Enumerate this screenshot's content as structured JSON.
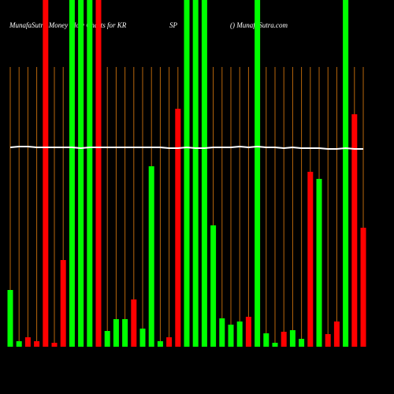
{
  "chart_data": {
    "type": "bar",
    "title_parts": [
      "MunafaSutra Money Flow Charts for KR",
      "SP",
      "() MunafaSutra.com"
    ],
    "ylim": [
      0,
      440
    ],
    "values": [
      72,
      7,
      12,
      7,
      460,
      5,
      110,
      460,
      460,
      460,
      460,
      20,
      35,
      35,
      60,
      23,
      229,
      7,
      12,
      302,
      460,
      460,
      460,
      154,
      36,
      28,
      32,
      38,
      460,
      17,
      5,
      19,
      21,
      10,
      222,
      213,
      16,
      32,
      460,
      295,
      151
    ],
    "colors": [
      "#00ff00",
      "#00ff00",
      "#ff0000",
      "#ff0000",
      "#ff0000",
      "#ff0000",
      "#ff0000",
      "#00ff00",
      "#00ff00",
      "#00ff00",
      "#ff0000",
      "#00ff00",
      "#00ff00",
      "#00ff00",
      "#ff0000",
      "#00ff00",
      "#00ff00",
      "#00ff00",
      "#ff0000",
      "#ff0000",
      "#00ff00",
      "#00ff00",
      "#00ff00",
      "#00ff00",
      "#00ff00",
      "#00ff00",
      "#00ff00",
      "#ff0000",
      "#00ff00",
      "#00ff00",
      "#00ff00",
      "#ff0000",
      "#00ff00",
      "#00ff00",
      "#ff0000",
      "#00ff00",
      "#ff0000",
      "#ff0000",
      "#00ff00",
      "#ff0000",
      "#ff0000"
    ],
    "line": {
      "color": "#ffffff",
      "values": [
        253,
        254,
        254,
        253,
        253,
        253,
        253,
        253,
        252,
        253,
        253,
        253,
        253,
        253,
        253,
        253,
        253,
        253,
        252,
        252,
        253,
        252,
        252,
        253,
        253,
        253,
        254,
        253,
        254,
        253,
        253,
        252,
        253,
        252,
        252,
        252,
        251,
        251,
        252,
        251,
        251
      ]
    },
    "grid_color": "#b8660b"
  }
}
